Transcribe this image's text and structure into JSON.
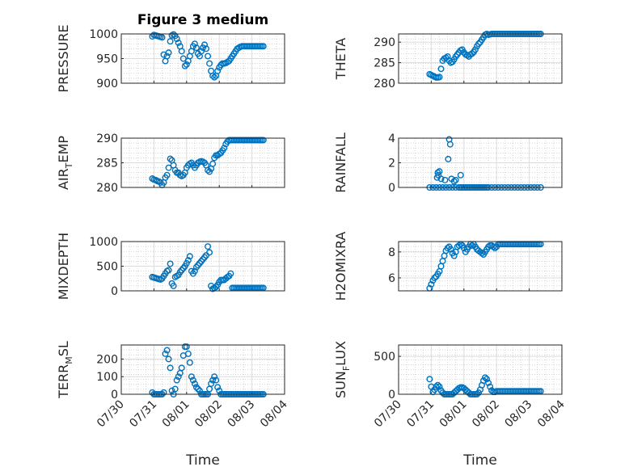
{
  "title": "Figure 3 medium",
  "xlabel": "Time",
  "x_ticks": [
    "07/30",
    "07/31",
    "08/01",
    "08/02",
    "08/03",
    "08/04"
  ],
  "colors": {
    "marker": "#0072BD",
    "axis": "#262626",
    "grid": "#bdbdbd"
  },
  "chart_data": [
    {
      "type": "scatter",
      "ylabel": "PRESSURE",
      "ylim": [
        900,
        1000
      ],
      "yticks": [
        "900",
        "950",
        "1000"
      ],
      "x": [
        0.95,
        1.0,
        1.05,
        1.1,
        1.15,
        1.2,
        1.25,
        1.3,
        1.35,
        1.4,
        1.45,
        1.5,
        1.55,
        1.6,
        1.65,
        1.7,
        1.75,
        1.8,
        1.85,
        1.9,
        1.95,
        2.0,
        2.05,
        2.1,
        2.15,
        2.2,
        2.25,
        2.3,
        2.35,
        2.4,
        2.45,
        2.5,
        2.55,
        2.6,
        2.65,
        2.7,
        2.75,
        2.8,
        2.85,
        2.9,
        2.95,
        3.0,
        3.05,
        3.1,
        3.15,
        3.2,
        3.25,
        3.3,
        3.35,
        3.4,
        3.45,
        3.5,
        3.55,
        3.6,
        3.65,
        3.7,
        3.75,
        3.8,
        3.85,
        3.9,
        3.95,
        4.0,
        4.05,
        4.1,
        4.15,
        4.2,
        4.25,
        4.3,
        4.35
      ],
      "y": [
        995,
        998,
        997,
        996,
        995,
        994,
        993,
        958,
        945,
        955,
        962,
        985,
        997,
        999,
        996,
        990,
        982,
        975,
        965,
        950,
        935,
        938,
        945,
        955,
        965,
        975,
        980,
        972,
        960,
        955,
        965,
        972,
        978,
        970,
        955,
        940,
        925,
        915,
        912,
        915,
        925,
        932,
        937,
        940,
        940,
        941,
        943,
        945,
        950,
        955,
        960,
        965,
        970,
        972,
        974,
        975,
        975,
        975,
        975,
        975,
        975,
        975,
        975,
        975,
        975,
        975,
        975,
        975,
        975
      ]
    },
    {
      "type": "scatter",
      "ylabel": "THETA",
      "ylim": [
        280,
        292
      ],
      "yticks": [
        "280",
        "285",
        "290"
      ],
      "x": [
        0.95,
        1.0,
        1.05,
        1.1,
        1.15,
        1.2,
        1.25,
        1.3,
        1.35,
        1.4,
        1.45,
        1.5,
        1.55,
        1.6,
        1.65,
        1.7,
        1.75,
        1.8,
        1.85,
        1.9,
        1.95,
        2.0,
        2.05,
        2.1,
        2.15,
        2.2,
        2.25,
        2.3,
        2.35,
        2.4,
        2.45,
        2.5,
        2.55,
        2.6,
        2.65,
        2.7,
        2.75,
        2.8,
        2.85,
        2.9,
        2.95,
        3.0,
        3.05,
        3.1,
        3.15,
        3.2,
        3.25,
        3.3,
        3.35,
        3.4,
        3.45,
        3.5,
        3.55,
        3.6,
        3.65,
        3.7,
        3.75,
        3.8,
        3.85,
        3.9,
        3.95,
        4.0,
        4.05,
        4.1,
        4.15,
        4.2,
        4.25,
        4.3,
        4.35
      ],
      "y": [
        282.2,
        282.0,
        281.8,
        281.6,
        281.4,
        281.4,
        281.5,
        283.5,
        285.5,
        286.0,
        286.2,
        286.5,
        285.5,
        285.0,
        285.2,
        285.8,
        286.5,
        287.0,
        287.5,
        288.0,
        288.2,
        287.5,
        287.0,
        286.8,
        286.5,
        287.0,
        287.2,
        287.6,
        288.2,
        289.0,
        289.6,
        290.0,
        290.6,
        291.2,
        291.8,
        292.0,
        291.8,
        291.9,
        292.0,
        292.0,
        292.0,
        292.0,
        292.0,
        292.0,
        292.0,
        292.0,
        292.0,
        292.0,
        292.0,
        292.0,
        292.0,
        292.0,
        292.0,
        292.0,
        292.0,
        292.0,
        292.0,
        292.0,
        292.0,
        292.0,
        292.0,
        292.0,
        292.0,
        292.0,
        292.0,
        292.0,
        292.0,
        292.0,
        292.0
      ]
    },
    {
      "type": "scatter",
      "ylabel": "AIR_TEMP",
      "ylim": [
        280,
        290
      ],
      "yticks": [
        "280",
        "285",
        "290"
      ],
      "x": [
        0.95,
        1.0,
        1.05,
        1.1,
        1.15,
        1.2,
        1.25,
        1.3,
        1.35,
        1.4,
        1.45,
        1.5,
        1.55,
        1.6,
        1.65,
        1.7,
        1.75,
        1.8,
        1.85,
        1.9,
        1.95,
        2.0,
        2.05,
        2.1,
        2.15,
        2.2,
        2.25,
        2.3,
        2.35,
        2.4,
        2.45,
        2.5,
        2.55,
        2.6,
        2.65,
        2.7,
        2.75,
        2.8,
        2.85,
        2.9,
        2.95,
        3.0,
        3.05,
        3.1,
        3.15,
        3.2,
        3.25,
        3.3,
        3.35,
        3.4,
        3.45,
        3.5,
        3.55,
        3.6,
        3.65,
        3.7,
        3.75,
        3.8,
        3.85,
        3.9,
        3.95,
        4.0,
        4.05,
        4.1,
        4.15,
        4.2,
        4.25,
        4.3,
        4.35
      ],
      "y": [
        281.8,
        281.6,
        281.5,
        281.3,
        281.2,
        281.0,
        280.5,
        281.0,
        282.0,
        282.5,
        284.0,
        285.8,
        285.5,
        284.5,
        283.5,
        283.0,
        283.0,
        282.5,
        282.3,
        282.5,
        283.0,
        284.0,
        284.5,
        284.8,
        285.0,
        284.5,
        284.0,
        284.5,
        285.0,
        285.2,
        285.3,
        285.2,
        285.0,
        284.5,
        283.5,
        283.2,
        283.8,
        284.8,
        286.0,
        286.5,
        286.5,
        286.8,
        287.0,
        287.5,
        288.0,
        288.8,
        289.3,
        289.6,
        289.6,
        289.6,
        289.6,
        289.6,
        289.6,
        289.6,
        289.6,
        289.6,
        289.6,
        289.6,
        289.6,
        289.6,
        289.6,
        289.6,
        289.6,
        289.6,
        289.6,
        289.6,
        289.6,
        289.6,
        289.6
      ]
    },
    {
      "type": "scatter",
      "ylabel": "RAINFALL",
      "ylim": [
        0,
        4
      ],
      "yticks": [
        "0",
        "2",
        "4"
      ],
      "x": [
        0.95,
        1.05,
        1.15,
        1.25,
        1.35,
        1.45,
        1.55,
        1.65,
        1.75,
        1.85,
        1.9,
        1.95,
        2.0,
        2.05,
        2.1,
        2.15,
        2.2,
        2.25,
        2.3,
        2.35,
        2.4,
        2.45,
        2.5,
        2.55,
        2.6,
        2.65,
        2.7,
        2.75,
        2.85,
        2.95,
        3.05,
        3.15,
        3.25,
        3.35,
        3.45,
        3.55,
        3.65,
        3.75,
        3.85,
        3.95,
        4.05,
        4.15,
        4.25,
        4.35,
        1.18,
        1.2,
        1.22,
        1.25,
        1.3,
        1.42,
        1.52,
        1.55,
        1.58,
        1.62,
        1.7,
        1.75,
        1.9
      ],
      "y": [
        0,
        0,
        0,
        0,
        0,
        0,
        0,
        0,
        0,
        0,
        0,
        0,
        0,
        0,
        0,
        0,
        0,
        0,
        0,
        0,
        0,
        0,
        0,
        0,
        0,
        0,
        0,
        0,
        0,
        0,
        0,
        0,
        0,
        0,
        0,
        0,
        0,
        0,
        0,
        0,
        0,
        0,
        0,
        0,
        0.8,
        1.2,
        1.0,
        1.3,
        0.7,
        0.6,
        2.3,
        3.9,
        3.5,
        0.7,
        0.5,
        0.6,
        1.0
      ]
    },
    {
      "type": "scatter",
      "ylabel": "MIXDEPTH",
      "ylim": [
        0,
        1000
      ],
      "yticks": [
        "0",
        "500",
        "1000"
      ],
      "x": [
        0.95,
        1.0,
        1.05,
        1.1,
        1.15,
        1.2,
        1.25,
        1.3,
        1.35,
        1.4,
        1.45,
        1.5,
        1.55,
        1.6,
        1.65,
        1.7,
        1.75,
        1.8,
        1.85,
        1.9,
        1.95,
        2.0,
        2.05,
        2.1,
        2.15,
        2.2,
        2.25,
        2.3,
        2.35,
        2.4,
        2.45,
        2.5,
        2.55,
        2.6,
        2.65,
        2.7,
        2.75,
        2.8,
        2.85,
        2.9,
        2.95,
        3.0,
        3.05,
        3.1,
        3.15,
        3.2,
        3.25,
        3.3,
        3.35,
        3.4,
        3.45,
        3.5,
        3.55,
        3.6,
        3.65,
        3.7,
        3.75,
        3.8,
        3.85,
        3.9,
        3.95,
        4.0,
        4.05,
        4.1,
        4.15,
        4.2,
        4.25,
        4.3,
        4.35
      ],
      "y": [
        280,
        270,
        260,
        250,
        240,
        230,
        250,
        300,
        350,
        400,
        420,
        550,
        150,
        100,
        280,
        300,
        320,
        380,
        420,
        460,
        500,
        560,
        620,
        700,
        400,
        350,
        400,
        480,
        520,
        560,
        600,
        640,
        680,
        720,
        900,
        780,
        100,
        40,
        60,
        80,
        120,
        180,
        220,
        220,
        220,
        250,
        280,
        300,
        350,
        60,
        60,
        60,
        60,
        60,
        60,
        60,
        60,
        60,
        60,
        60,
        60,
        60,
        60,
        60,
        60,
        60,
        60,
        60,
        60
      ]
    },
    {
      "type": "scatter",
      "ylabel": "H2OMIXRA",
      "ylim": [
        5,
        8.8
      ],
      "yticks": [
        "6",
        "8"
      ],
      "x": [
        0.95,
        1.0,
        1.05,
        1.1,
        1.15,
        1.2,
        1.25,
        1.3,
        1.35,
        1.4,
        1.45,
        1.5,
        1.55,
        1.6,
        1.65,
        1.7,
        1.75,
        1.8,
        1.85,
        1.9,
        1.95,
        2.0,
        2.05,
        2.1,
        2.15,
        2.2,
        2.25,
        2.3,
        2.35,
        2.4,
        2.45,
        2.5,
        2.55,
        2.6,
        2.65,
        2.7,
        2.75,
        2.8,
        2.85,
        2.9,
        2.95,
        3.0,
        3.05,
        3.1,
        3.15,
        3.2,
        3.25,
        3.3,
        3.35,
        3.4,
        3.45,
        3.5,
        3.55,
        3.6,
        3.65,
        3.7,
        3.75,
        3.8,
        3.85,
        3.9,
        3.95,
        4.0,
        4.05,
        4.1,
        4.15,
        4.2,
        4.25,
        4.3,
        4.35
      ],
      "y": [
        5.2,
        5.5,
        5.8,
        6.0,
        6.1,
        6.3,
        6.5,
        6.9,
        7.3,
        7.7,
        8.1,
        8.3,
        8.4,
        8.2,
        7.9,
        7.7,
        8.0,
        8.4,
        8.5,
        8.6,
        8.5,
        8.3,
        8.0,
        8.2,
        8.4,
        8.6,
        8.5,
        8.6,
        8.4,
        8.2,
        8.1,
        8.0,
        7.9,
        7.8,
        8.0,
        8.2,
        8.4,
        8.5,
        8.5,
        8.4,
        8.3,
        8.4,
        8.6,
        8.6,
        8.6,
        8.6,
        8.6,
        8.6,
        8.6,
        8.6,
        8.6,
        8.6,
        8.6,
        8.6,
        8.6,
        8.6,
        8.6,
        8.6,
        8.6,
        8.6,
        8.6,
        8.6,
        8.6,
        8.6,
        8.6,
        8.6,
        8.6,
        8.6,
        8.6
      ]
    },
    {
      "type": "scatter",
      "ylabel": "TERR_MSL",
      "ylim": [
        0,
        280
      ],
      "yticks": [
        "0",
        "100",
        "200"
      ],
      "x": [
        0.95,
        1.0,
        1.05,
        1.1,
        1.15,
        1.2,
        1.25,
        1.3,
        1.35,
        1.4,
        1.45,
        1.5,
        1.55,
        1.6,
        1.65,
        1.7,
        1.75,
        1.8,
        1.85,
        1.9,
        1.95,
        2.0,
        2.05,
        2.1,
        2.15,
        2.2,
        2.25,
        2.3,
        2.35,
        2.4,
        2.45,
        2.5,
        2.55,
        2.6,
        2.65,
        2.7,
        2.75,
        2.8,
        2.85,
        2.9,
        2.95,
        3.0,
        3.05,
        3.1,
        3.15,
        3.2,
        3.25,
        3.3,
        3.35,
        3.4,
        3.45,
        3.5,
        3.55,
        3.6,
        3.65,
        3.7,
        3.75,
        3.8,
        3.85,
        3.9,
        3.95,
        4.0,
        4.05,
        4.1,
        4.15,
        4.2,
        4.25,
        4.3,
        4.35
      ],
      "y": [
        10,
        0,
        0,
        0,
        0,
        0,
        0,
        10,
        230,
        250,
        200,
        150,
        20,
        0,
        30,
        80,
        100,
        120,
        150,
        220,
        270,
        270,
        230,
        180,
        100,
        80,
        60,
        40,
        30,
        20,
        0,
        0,
        0,
        0,
        0,
        30,
        60,
        80,
        100,
        80,
        40,
        20,
        0,
        0,
        0,
        0,
        0,
        0,
        0,
        0,
        0,
        0,
        0,
        0,
        0,
        0,
        0,
        0,
        0,
        0,
        0,
        0,
        0,
        0,
        0,
        0,
        0,
        0,
        0
      ]
    },
    {
      "type": "scatter",
      "ylabel": "SUN_FLUX",
      "ylim": [
        0,
        650
      ],
      "yticks": [
        "0",
        "500"
      ],
      "x": [
        0.95,
        1.0,
        1.05,
        1.1,
        1.15,
        1.2,
        1.25,
        1.3,
        1.35,
        1.4,
        1.45,
        1.5,
        1.55,
        1.6,
        1.65,
        1.7,
        1.75,
        1.8,
        1.85,
        1.9,
        1.95,
        2.0,
        2.05,
        2.1,
        2.15,
        2.2,
        2.25,
        2.3,
        2.35,
        2.4,
        2.45,
        2.5,
        2.55,
        2.6,
        2.65,
        2.7,
        2.75,
        2.8,
        2.85,
        2.9,
        2.95,
        3.0,
        3.05,
        3.1,
        3.15,
        3.2,
        3.25,
        3.3,
        3.35,
        3.4,
        3.45,
        3.5,
        3.55,
        3.6,
        3.65,
        3.7,
        3.75,
        3.8,
        3.85,
        3.9,
        3.95,
        4.0,
        4.05,
        4.1,
        4.15,
        4.2,
        4.25,
        4.3,
        4.35
      ],
      "y": [
        200,
        100,
        30,
        60,
        100,
        120,
        100,
        50,
        20,
        0,
        0,
        0,
        0,
        0,
        0,
        20,
        40,
        60,
        80,
        90,
        90,
        80,
        60,
        40,
        20,
        0,
        0,
        0,
        0,
        0,
        20,
        60,
        120,
        180,
        220,
        200,
        150,
        100,
        50,
        30,
        30,
        40,
        40,
        40,
        40,
        40,
        40,
        40,
        40,
        40,
        40,
        40,
        40,
        40,
        40,
        40,
        40,
        40,
        40,
        40,
        40,
        40,
        40,
        40,
        40,
        40,
        40,
        40,
        40
      ]
    }
  ]
}
